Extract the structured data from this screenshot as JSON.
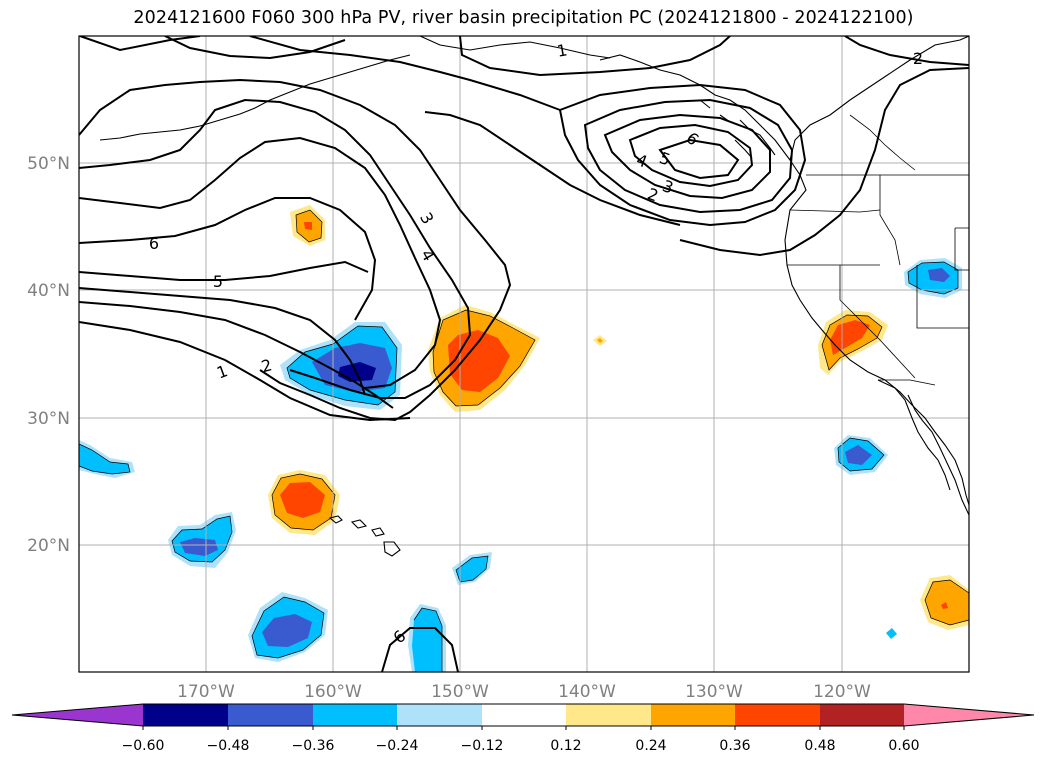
{
  "title": "2024121600 F060 300 hPa PV, river basin precipitation PC (2024121800 - 2024122100)",
  "axes": {
    "x_ticks": [
      "170°W",
      "160°W",
      "150°W",
      "140°W",
      "130°W",
      "120°W"
    ],
    "y_ticks": [
      "50°N",
      "40°N",
      "30°N",
      "20°N"
    ]
  },
  "contour_labels": [
    "1",
    "2",
    "3",
    "4",
    "5",
    "6",
    "6",
    "5",
    "4",
    "3",
    "2",
    "1",
    "2",
    "6"
  ],
  "colorbar": {
    "ticks": [
      "−0.60",
      "−0.48",
      "−0.36",
      "−0.24",
      "−0.12",
      "0.12",
      "0.24",
      "0.36",
      "0.48",
      "0.60"
    ],
    "colors": [
      "#9a35cf",
      "#00008b",
      "#3a5bd0",
      "#00bfff",
      "#aee2fb",
      "#ffffff",
      "#ffe88a",
      "#ffa500",
      "#ff4500",
      "#b22222",
      "#ff88aa"
    ]
  },
  "chart_data": {
    "type": "heatmap",
    "map_extent": {
      "lon": [
        -180,
        -110
      ],
      "lat": [
        10,
        60
      ]
    },
    "field_filled": "river basin precipitation PC",
    "field_contours": "300 hPa PV",
    "contour_levels": [
      1,
      2,
      3,
      4,
      5,
      6
    ],
    "color_levels": [
      -0.6,
      -0.48,
      -0.36,
      -0.24,
      -0.12,
      0.12,
      0.24,
      0.36,
      0.48,
      0.6
    ],
    "grid": true,
    "colorbar_placement": "bottom",
    "blobs": [
      {
        "lon": -162,
        "lat": 45,
        "peak": 0.4
      },
      {
        "lon": -158,
        "lat": 34,
        "peak": -0.55
      },
      {
        "lon": -150,
        "lat": 35,
        "peak": 0.45
      },
      {
        "lon": -139,
        "lat": 36,
        "peak": 0.25
      },
      {
        "lon": -121,
        "lat": 37,
        "peak": 0.42
      },
      {
        "lon": -114,
        "lat": 41,
        "peak": -0.4
      },
      {
        "lon": -119,
        "lat": 27,
        "peak": -0.45
      },
      {
        "lon": -163,
        "lat": 23,
        "peak": 0.42
      },
      {
        "lon": -178,
        "lat": 27,
        "peak": -0.3
      },
      {
        "lon": -168,
        "lat": 20,
        "peak": -0.4
      },
      {
        "lon": -164,
        "lat": 13,
        "peak": -0.45
      },
      {
        "lon": -148,
        "lat": 18,
        "peak": -0.3
      },
      {
        "lon": -152,
        "lat": 11,
        "peak": -0.32
      },
      {
        "lon": -112,
        "lat": 15,
        "peak": 0.4
      },
      {
        "lon": -116,
        "lat": 13,
        "peak": -0.2
      }
    ]
  }
}
